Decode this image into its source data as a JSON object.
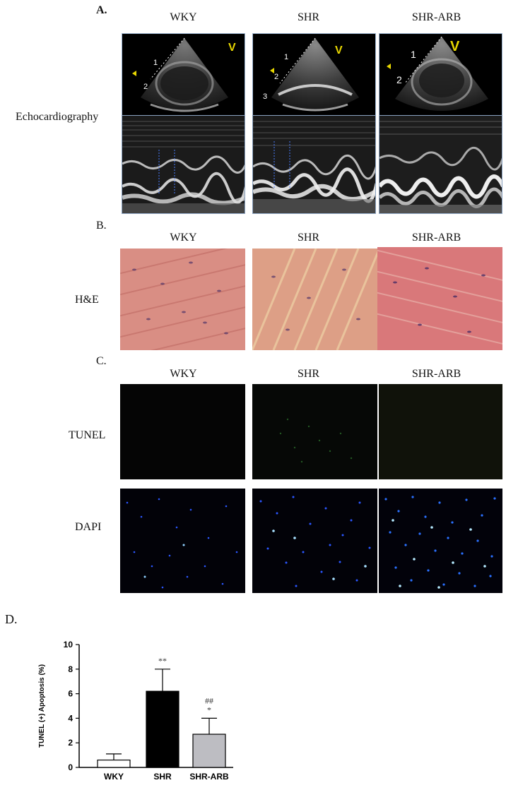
{
  "panels": {
    "a_label": "A.",
    "b_label": "B.",
    "c_label": "C.",
    "d_label": "D."
  },
  "groups": [
    "WKY",
    "SHR",
    "SHR-ARB"
  ],
  "rows": {
    "echo": "Echocardiography",
    "he": "H&E",
    "tunel": "TUNEL",
    "dapi": "DAPI"
  },
  "echo_marks": {
    "v": "V",
    "depth_1": "1",
    "depth_2": "2",
    "depth_3": "3"
  },
  "colors": {
    "he_base": "#d98a80",
    "dapi_blue": "#2a56ff",
    "tunel_green": "#2a6a2a"
  },
  "chart_data": {
    "type": "bar",
    "categories": [
      "WKY",
      "SHR",
      "SHR-ARB"
    ],
    "values": [
      0.6,
      6.2,
      2.7
    ],
    "errors": [
      0.5,
      1.8,
      1.3
    ],
    "bar_colors": [
      "#ffffff",
      "#000000",
      "#bdbdc2"
    ],
    "annotations": [
      "",
      "**",
      "##\n*"
    ],
    "ylabel": "TUNEL (+) Apoptosis (%)",
    "ylim": [
      0,
      10
    ],
    "yticks": [
      0,
      2,
      4,
      6,
      8,
      10
    ]
  }
}
